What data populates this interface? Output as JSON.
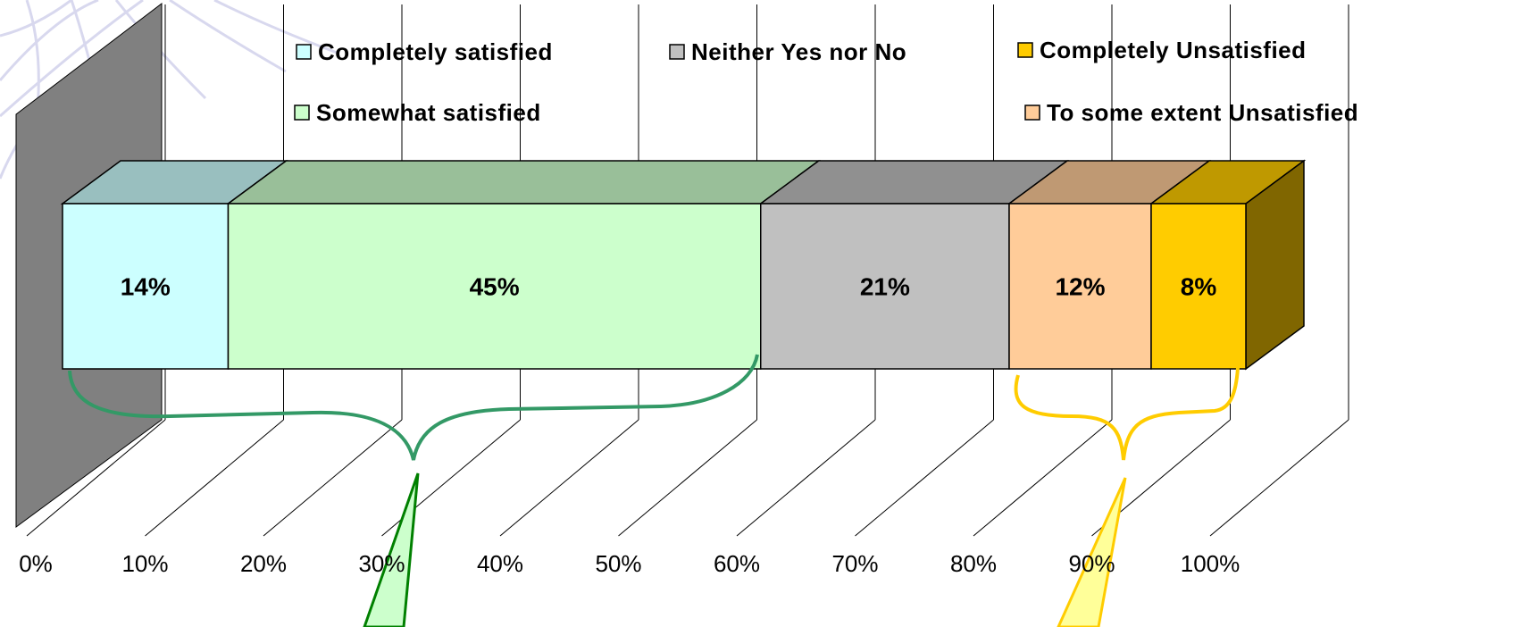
{
  "chart_data": {
    "type": "bar",
    "orientation": "horizontal",
    "stacked": true,
    "style": "3d",
    "title": "",
    "xlabel": "",
    "ylabel": "",
    "xlim": [
      0,
      100
    ],
    "x_ticks": [
      "0%",
      "10%",
      "20%",
      "30%",
      "40%",
      "50%",
      "60%",
      "70%",
      "80%",
      "90%",
      "100%"
    ],
    "grid": true,
    "legend_position": "top",
    "series": [
      {
        "name": "Completely satisfied",
        "value": 14,
        "label": "14%",
        "color": "#ccffff"
      },
      {
        "name": "Somewhat satisfied",
        "value": 45,
        "label": "45%",
        "color": "#ccffcc"
      },
      {
        "name": "Neither Yes nor No",
        "value": 21,
        "label": "21%",
        "color": "#c0c0c0"
      },
      {
        "name": "To some extent Unsatisfied",
        "value": 12,
        "label": "12%",
        "color": "#ffcc99"
      },
      {
        "name": "Completely Unsatisfied",
        "value": 8,
        "label": "8%",
        "color": "#ffcc00"
      }
    ],
    "legend_order": [
      "Completely satisfied",
      "Neither Yes nor No",
      "Completely Unsatisfied",
      "Somewhat satisfied",
      "To some extent Unsatisfied"
    ],
    "annotations": [
      {
        "type": "brace",
        "covers": [
          "Completely satisfied",
          "Somewhat satisfied"
        ],
        "color": "#339966"
      },
      {
        "type": "brace",
        "covers": [
          "To some extent Unsatisfied",
          "Completely Unsatisfied"
        ],
        "color": "#ffcc00"
      }
    ]
  }
}
